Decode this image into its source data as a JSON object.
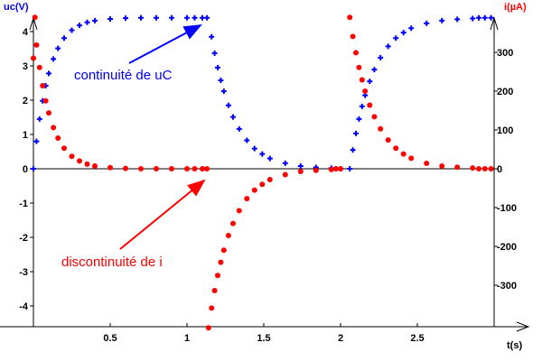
{
  "chart_data": {
    "type": "scatter",
    "title": "",
    "xlabel": "t(s)",
    "ylabel_left": "uc(V)",
    "ylabel_right": "i(µA)",
    "xlim": [
      0,
      3.0
    ],
    "ylim_left": [
      -4.6,
      4.6
    ],
    "ylim_right": [
      -410,
      410
    ],
    "x_ticks": [
      {
        "v": 0.5,
        "label": "0.5"
      },
      {
        "v": 1,
        "label": "1"
      },
      {
        "v": 1.5,
        "label": "1.5"
      },
      {
        "v": 2,
        "label": "2"
      },
      {
        "v": 2.5,
        "label": "2.5"
      }
    ],
    "y_left_ticks": [
      {
        "v": 4,
        "label": "4"
      },
      {
        "v": 3,
        "label": "3"
      },
      {
        "v": 2,
        "label": "2"
      },
      {
        "v": 1,
        "label": "1"
      },
      {
        "v": 0,
        "label": "0"
      },
      {
        "v": -1,
        "label": "-1"
      },
      {
        "v": -2,
        "label": "-2"
      },
      {
        "v": -3,
        "label": "-3"
      },
      {
        "v": -4,
        "label": "-4"
      }
    ],
    "y_right_ticks": [
      {
        "v": 300,
        "label": "300"
      },
      {
        "v": 200,
        "label": "200"
      },
      {
        "v": 100,
        "label": "100"
      },
      {
        "v": 0,
        "label": "0"
      },
      {
        "v": -100,
        "label": "-100"
      },
      {
        "v": -200,
        "label": "-200"
      },
      {
        "v": -300,
        "label": "-300"
      }
    ],
    "grid": false,
    "colors": {
      "uc": "#0000ff",
      "i": "#ff0000"
    },
    "series": [
      {
        "name": "uc",
        "axis": "left",
        "marker": "plus",
        "x": [
          0,
          0.02,
          0.04,
          0.06,
          0.08,
          0.1,
          0.13,
          0.16,
          0.2,
          0.25,
          0.3,
          0.35,
          0.4,
          0.5,
          0.6,
          0.7,
          0.8,
          0.9,
          1.0,
          1.05,
          1.1,
          1.13,
          1.16,
          1.18,
          1.2,
          1.22,
          1.24,
          1.27,
          1.3,
          1.34,
          1.39,
          1.44,
          1.49,
          1.54,
          1.64,
          1.74,
          1.84,
          1.94,
          1.97,
          2.0,
          2.06,
          2.08,
          2.1,
          2.12,
          2.14,
          2.16,
          2.19,
          2.22,
          2.26,
          2.31,
          2.36,
          2.41,
          2.46,
          2.56,
          2.66,
          2.76,
          2.86,
          2.9,
          2.94,
          2.98
        ],
        "y": [
          0,
          0.8,
          1.45,
          1.98,
          2.42,
          2.78,
          3.2,
          3.51,
          3.81,
          4.04,
          4.18,
          4.27,
          4.32,
          4.37,
          4.39,
          4.4,
          4.4,
          4.4,
          4.4,
          4.4,
          4.4,
          4.4,
          3.85,
          3.37,
          2.95,
          2.58,
          2.26,
          1.85,
          1.51,
          1.16,
          0.83,
          0.59,
          0.43,
          0.3,
          0.16,
          0.08,
          0.04,
          0.02,
          0,
          0,
          0,
          0.55,
          1.03,
          1.45,
          1.82,
          2.14,
          2.55,
          2.89,
          3.24,
          3.57,
          3.81,
          3.97,
          4.1,
          4.24,
          4.32,
          4.36,
          4.38,
          4.4,
          4.4,
          4.4
        ]
      },
      {
        "name": "i",
        "axis": "right",
        "marker": "dot",
        "x": [
          0,
          0.01,
          0.02,
          0.04,
          0.06,
          0.08,
          0.1,
          0.13,
          0.16,
          0.2,
          0.25,
          0.3,
          0.35,
          0.4,
          0.5,
          0.6,
          0.7,
          0.8,
          0.9,
          1.0,
          1.05,
          1.1,
          1.13,
          1.14,
          1.16,
          1.18,
          1.2,
          1.22,
          1.24,
          1.27,
          1.3,
          1.34,
          1.39,
          1.44,
          1.49,
          1.54,
          1.64,
          1.74,
          1.84,
          1.94,
          1.97,
          2.0,
          2.06,
          2.08,
          2.1,
          2.12,
          2.14,
          2.16,
          2.19,
          2.22,
          2.26,
          2.31,
          2.36,
          2.41,
          2.46,
          2.56,
          2.66,
          2.76,
          2.86,
          2.9,
          2.94,
          2.98
        ],
        "y": [
          285,
          390,
          319,
          261,
          214,
          175,
          144,
          106,
          79,
          53,
          32,
          20,
          12,
          7,
          3,
          1,
          0,
          0,
          0,
          0,
          0,
          0,
          0,
          -410,
          -359,
          -314,
          -275,
          -241,
          -210,
          -172,
          -141,
          -108,
          -77,
          -55,
          -40,
          -28,
          -15,
          -7,
          -4,
          -2,
          0,
          0,
          390,
          341,
          299,
          261,
          229,
          200,
          164,
          134,
          103,
          74,
          53,
          38,
          27,
          14,
          7,
          4,
          2,
          0,
          0,
          0
        ]
      }
    ],
    "annotations": [
      {
        "text": "continuité de uC",
        "color": "#0000ff",
        "points_to": {
          "x": 1.1,
          "y_left": 4.4
        }
      },
      {
        "text": "discontinuité de i",
        "color": "#ff0000",
        "points_to": {
          "x": 1.13,
          "y_right": 0
        }
      }
    ]
  }
}
